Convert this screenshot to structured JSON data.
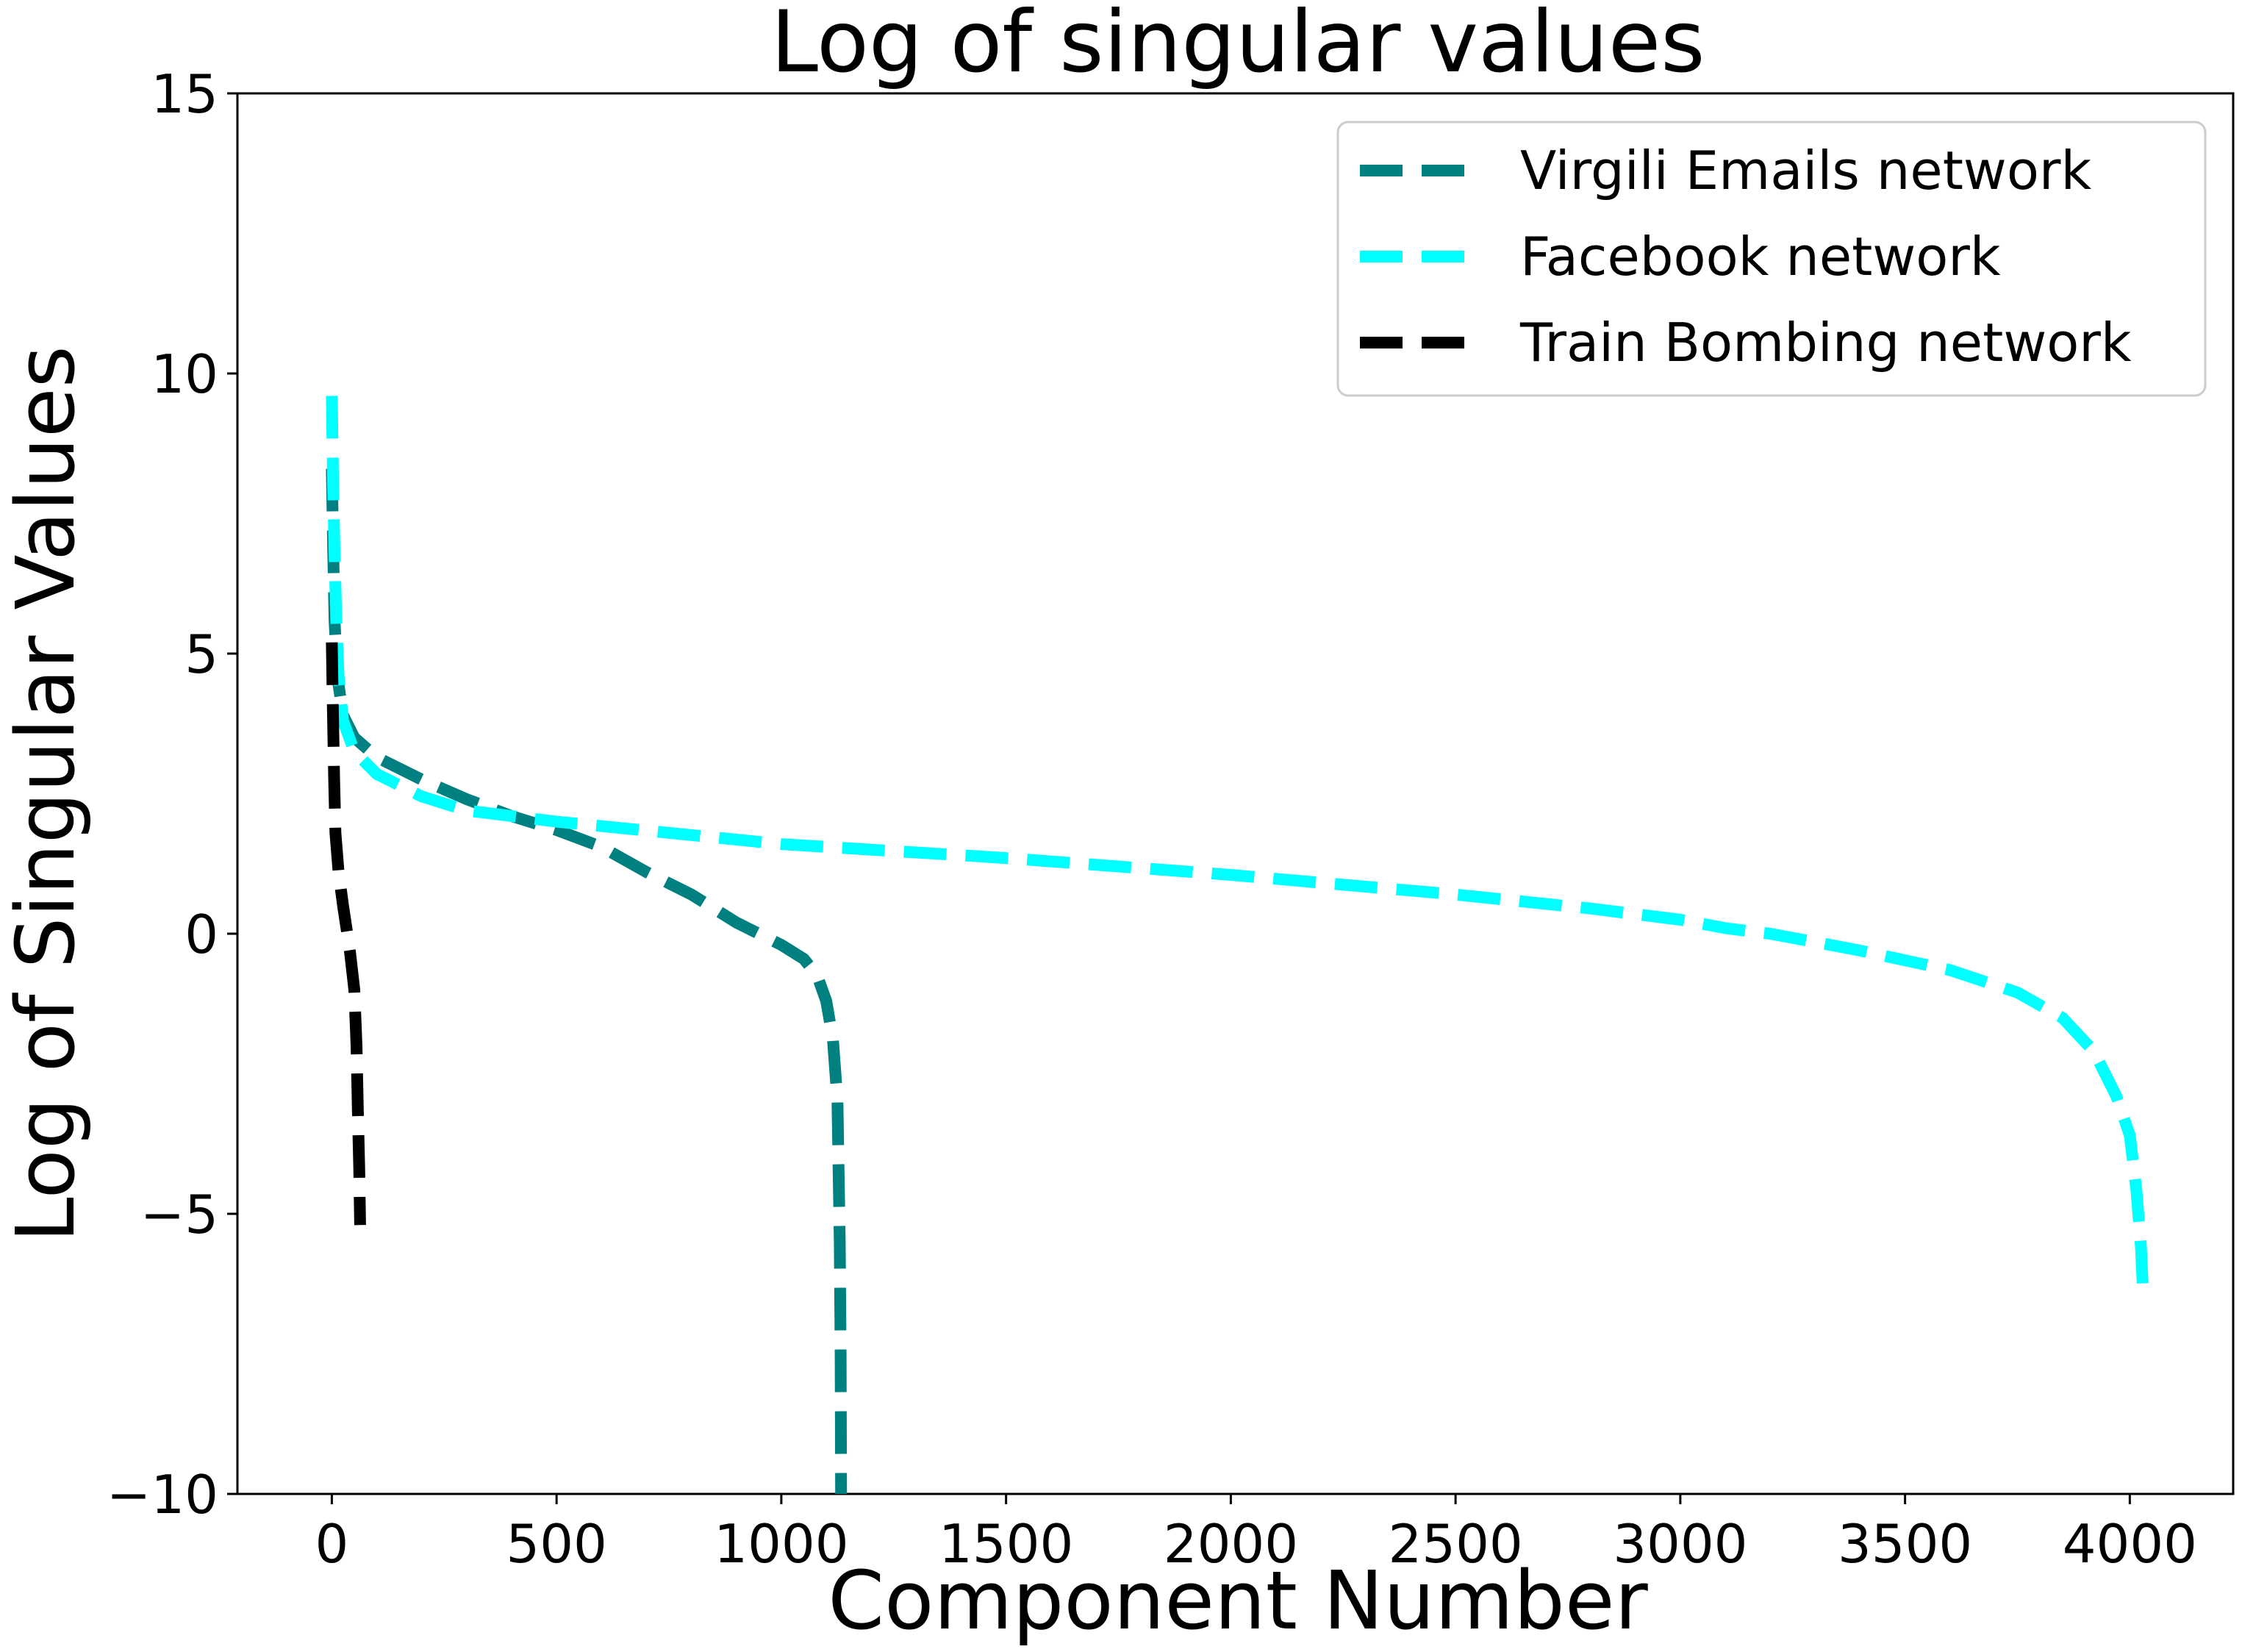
{
  "chart_data": {
    "type": "line",
    "title": "Log of singular values",
    "xlabel": "Component Number",
    "ylabel": "Log of Singular Values",
    "xlim": [
      -210,
      4230
    ],
    "ylim": [
      -10,
      15
    ],
    "xticks": [
      0,
      500,
      1000,
      1500,
      2000,
      2500,
      3000,
      3500,
      4000
    ],
    "xtick_labels": [
      "0",
      "500",
      "1000",
      "1500",
      "2000",
      "2500",
      "3000",
      "3500",
      "4000"
    ],
    "yticks": [
      -10,
      -5,
      0,
      5,
      10,
      15
    ],
    "ytick_labels": [
      "−10",
      "−5",
      "0",
      "5",
      "10",
      "15"
    ],
    "grid": false,
    "legend_position": "top-right",
    "series": [
      {
        "name": "Virgili Emails network",
        "color": "#008080",
        "dash": "dashed",
        "points": [
          [
            0,
            8.3
          ],
          [
            3,
            6.9
          ],
          [
            6,
            5.6
          ],
          [
            12,
            4.6
          ],
          [
            25,
            3.9
          ],
          [
            50,
            3.5
          ],
          [
            100,
            3.15
          ],
          [
            200,
            2.75
          ],
          [
            300,
            2.4
          ],
          [
            400,
            2.1
          ],
          [
            500,
            1.85
          ],
          [
            600,
            1.55
          ],
          [
            700,
            1.1
          ],
          [
            800,
            0.7
          ],
          [
            850,
            0.45
          ],
          [
            900,
            0.2
          ],
          [
            950,
            0.0
          ],
          [
            1000,
            -0.2
          ],
          [
            1050,
            -0.45
          ],
          [
            1080,
            -0.75
          ],
          [
            1100,
            -1.2
          ],
          [
            1115,
            -1.9
          ],
          [
            1125,
            -3.0
          ],
          [
            1130,
            -5.5
          ],
          [
            1132,
            -7.5
          ],
          [
            1133,
            -10.0
          ]
        ]
      },
      {
        "name": "Facebook network",
        "color": "#00ffff",
        "dash": "dashed",
        "points": [
          [
            0,
            9.6
          ],
          [
            3,
            8.0
          ],
          [
            6,
            6.8
          ],
          [
            10,
            5.6
          ],
          [
            15,
            4.6
          ],
          [
            25,
            3.8
          ],
          [
            50,
            3.25
          ],
          [
            100,
            2.85
          ],
          [
            200,
            2.45
          ],
          [
            300,
            2.2
          ],
          [
            500,
            2.0
          ],
          [
            750,
            1.8
          ],
          [
            1000,
            1.6
          ],
          [
            1500,
            1.35
          ],
          [
            2000,
            1.05
          ],
          [
            2500,
            0.7
          ],
          [
            2800,
            0.45
          ],
          [
            3000,
            0.25
          ],
          [
            3100,
            0.1
          ],
          [
            3200,
            0.0
          ],
          [
            3400,
            -0.3
          ],
          [
            3600,
            -0.65
          ],
          [
            3750,
            -1.05
          ],
          [
            3850,
            -1.5
          ],
          [
            3920,
            -2.1
          ],
          [
            3970,
            -2.9
          ],
          [
            4000,
            -3.6
          ],
          [
            4015,
            -4.6
          ],
          [
            4025,
            -5.6
          ],
          [
            4030,
            -6.5
          ]
        ]
      },
      {
        "name": "Train Bombing network",
        "color": "#000000",
        "dash": "dashed",
        "points": [
          [
            0,
            5.2
          ],
          [
            2,
            4.2
          ],
          [
            5,
            2.8
          ],
          [
            8,
            1.8
          ],
          [
            15,
            1.1
          ],
          [
            25,
            0.5
          ],
          [
            40,
            -0.3
          ],
          [
            50,
            -1.0
          ],
          [
            55,
            -2.0
          ],
          [
            58,
            -3.2
          ],
          [
            61,
            -4.2
          ],
          [
            63,
            -5.2
          ]
        ]
      }
    ]
  }
}
